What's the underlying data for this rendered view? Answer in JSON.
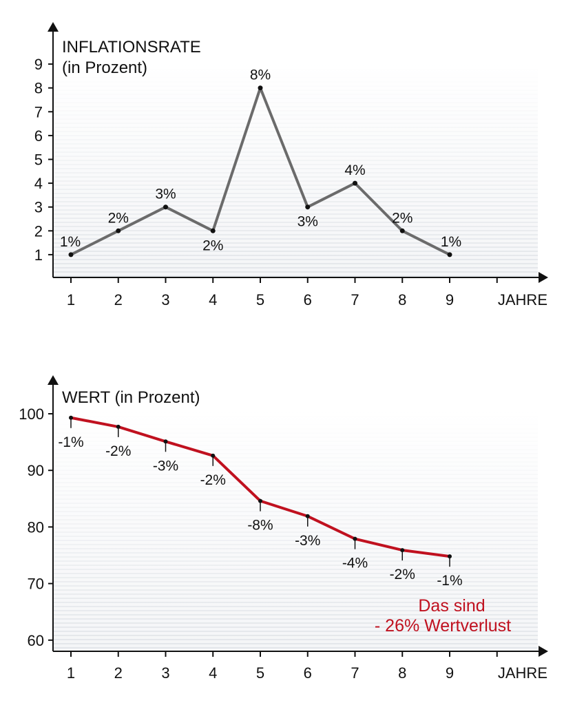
{
  "chart_data": [
    {
      "type": "line",
      "title": "INFLATIONSRATE",
      "subtitle": "(in Prozent)",
      "xlabel": "JAHRE",
      "ylabel": "",
      "x": [
        1,
        2,
        3,
        4,
        5,
        6,
        7,
        8,
        9
      ],
      "xticks": [
        "1",
        "2",
        "3",
        "4",
        "5",
        "6",
        "7",
        "8",
        "9"
      ],
      "yticks": [
        "1",
        "2",
        "3",
        "4",
        "5",
        "6",
        "7",
        "8",
        "9"
      ],
      "ylim": [
        0.1,
        9.9
      ],
      "values": [
        1,
        2,
        3,
        2,
        8,
        3,
        4,
        2,
        1
      ],
      "labels": [
        "1%",
        "2%",
        "3%",
        "2%",
        "8%",
        "3%",
        "4%",
        "2%",
        "1%"
      ],
      "line_color": "#6b6b6b",
      "grid": false,
      "background": "gradient-stripes"
    },
    {
      "type": "line",
      "title": "WERT (in Prozent)",
      "xlabel": "JAHRE",
      "ylabel": "",
      "x": [
        1,
        2,
        3,
        4,
        5,
        6,
        7,
        8,
        9
      ],
      "xticks": [
        "1",
        "2",
        "3",
        "4",
        "5",
        "6",
        "7",
        "8",
        "9"
      ],
      "yticks": [
        "60",
        "70",
        "80",
        "90",
        "100"
      ],
      "ylim": [
        58,
        104
      ],
      "values": [
        99.3,
        97.7,
        95.1,
        92.6,
        84.6,
        81.9,
        77.9,
        75.9,
        74.8
      ],
      "labels": [
        "-1%",
        "-2%",
        "-3%",
        "-2%",
        "-8%",
        "-3%",
        "-4%",
        "-2%",
        "-1%"
      ],
      "line_color": "#c0111f",
      "annotation": [
        "Das sind",
        "- 26% Wertverlust"
      ],
      "annotation_color": "#c0111f",
      "grid": false,
      "background": "gradient-stripes"
    }
  ]
}
